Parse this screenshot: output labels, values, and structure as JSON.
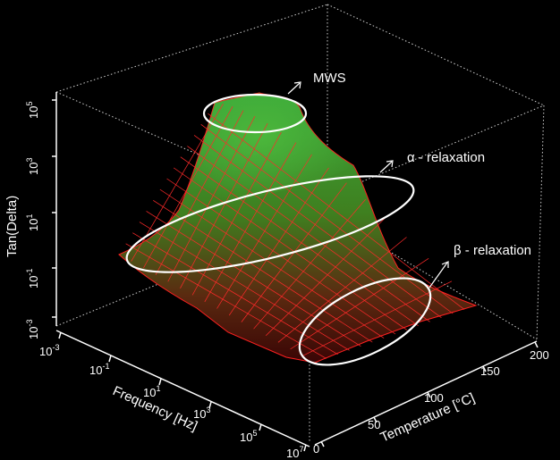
{
  "chart_data": {
    "type": "surface-3d",
    "zlabel": "Tan(Delta)",
    "xlabel": "Frequency [Hz]",
    "ylabel": "Temperature [°C]",
    "z_scale": "log",
    "z_ticks": [
      {
        "base": "10",
        "exp": "5"
      },
      {
        "base": "10",
        "exp": "3"
      },
      {
        "base": "10",
        "exp": "1"
      },
      {
        "base": "10",
        "exp": "-1"
      },
      {
        "base": "10",
        "exp": "-3"
      }
    ],
    "x_scale": "log",
    "x_ticks": [
      {
        "base": "10",
        "exp": "-3"
      },
      {
        "base": "10",
        "exp": "-1"
      },
      {
        "base": "10",
        "exp": "1"
      },
      {
        "base": "10",
        "exp": "3"
      },
      {
        "base": "10",
        "exp": "5"
      },
      {
        "base": "10",
        "exp": "7"
      }
    ],
    "y_ticks": [
      "0",
      "50",
      "100",
      "150",
      "200"
    ],
    "annotations": [
      "MWS",
      "α - relaxation",
      "β - relaxation"
    ],
    "colors": {
      "low": "#ff1a1a",
      "high": "#2e9a2e",
      "background": "#000000",
      "axes": "#ffffff"
    },
    "grid": false
  }
}
